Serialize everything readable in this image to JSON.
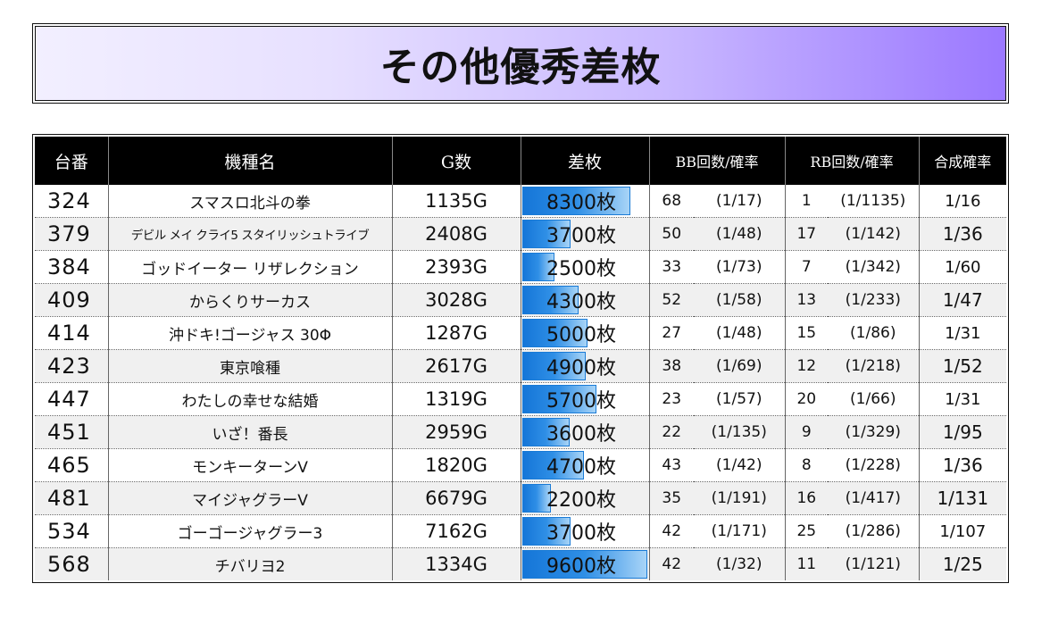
{
  "title": "その他優秀差枚",
  "headers": {
    "machine_no": "台番",
    "model": "機種名",
    "games": "G数",
    "diff": "差枚",
    "bb": "BB回数/確率",
    "rb": "RB回数/確率",
    "combined": "合成確率"
  },
  "rows": [
    {
      "no": "324",
      "model": "スマスロ北斗の拳",
      "games": "1135G",
      "diff": "8300枚",
      "diff_value": 8300,
      "bb": "68",
      "bb_prob": "(1/17)",
      "rb": "1",
      "rb_prob": "(1/1135)",
      "rate": "1/16"
    },
    {
      "no": "379",
      "model": "デビル メイ クライ5 スタイリッシュトライブ",
      "games": "2408G",
      "diff": "3700枚",
      "diff_value": 3700,
      "bb": "50",
      "bb_prob": "(1/48)",
      "rb": "17",
      "rb_prob": "(1/142)",
      "rate": "1/36"
    },
    {
      "no": "384",
      "model": "ゴッドイーター リザレクション",
      "games": "2393G",
      "diff": "2500枚",
      "diff_value": 2500,
      "bb": "33",
      "bb_prob": "(1/73)",
      "rb": "7",
      "rb_prob": "(1/342)",
      "rate": "1/60"
    },
    {
      "no": "409",
      "model": "からくりサーカス",
      "games": "3028G",
      "diff": "4300枚",
      "diff_value": 4300,
      "bb": "52",
      "bb_prob": "(1/58)",
      "rb": "13",
      "rb_prob": "(1/233)",
      "rate": "1/47"
    },
    {
      "no": "414",
      "model": "沖ドキ!ゴージャス 30Φ",
      "games": "1287G",
      "diff": "5000枚",
      "diff_value": 5000,
      "bb": "27",
      "bb_prob": "(1/48)",
      "rb": "15",
      "rb_prob": "(1/86)",
      "rate": "1/31"
    },
    {
      "no": "423",
      "model": "東京喰種",
      "games": "2617G",
      "diff": "4900枚",
      "diff_value": 4900,
      "bb": "38",
      "bb_prob": "(1/69)",
      "rb": "12",
      "rb_prob": "(1/218)",
      "rate": "1/52"
    },
    {
      "no": "447",
      "model": "わたしの幸せな結婚",
      "games": "1319G",
      "diff": "5700枚",
      "diff_value": 5700,
      "bb": "23",
      "bb_prob": "(1/57)",
      "rb": "20",
      "rb_prob": "(1/66)",
      "rate": "1/31"
    },
    {
      "no": "451",
      "model": "いざ！番長",
      "games": "2959G",
      "diff": "3600枚",
      "diff_value": 3600,
      "bb": "22",
      "bb_prob": "(1/135)",
      "rb": "9",
      "rb_prob": "(1/329)",
      "rate": "1/95"
    },
    {
      "no": "465",
      "model": "モンキーターンV",
      "games": "1820G",
      "diff": "4700枚",
      "diff_value": 4700,
      "bb": "43",
      "bb_prob": "(1/42)",
      "rb": "8",
      "rb_prob": "(1/228)",
      "rate": "1/36"
    },
    {
      "no": "481",
      "model": "マイジャグラーV",
      "games": "6679G",
      "diff": "2200枚",
      "diff_value": 2200,
      "bb": "35",
      "bb_prob": "(1/191)",
      "rb": "16",
      "rb_prob": "(1/417)",
      "rate": "1/131"
    },
    {
      "no": "534",
      "model": "ゴーゴージャグラー3",
      "games": "7162G",
      "diff": "3700枚",
      "diff_value": 3700,
      "bb": "42",
      "bb_prob": "(1/171)",
      "rb": "25",
      "rb_prob": "(1/286)",
      "rate": "1/107"
    },
    {
      "no": "568",
      "model": "チバリヨ2",
      "games": "1334G",
      "diff": "9600枚",
      "diff_value": 9600,
      "bb": "42",
      "bb_prob": "(1/32)",
      "rb": "11",
      "rb_prob": "(1/121)",
      "rate": "1/25"
    }
  ],
  "bar_max_value": 9600,
  "colors": {
    "bar": "#2f8fe6",
    "header_bg": "#000000",
    "title_gradient_end": "#9b78ff"
  }
}
